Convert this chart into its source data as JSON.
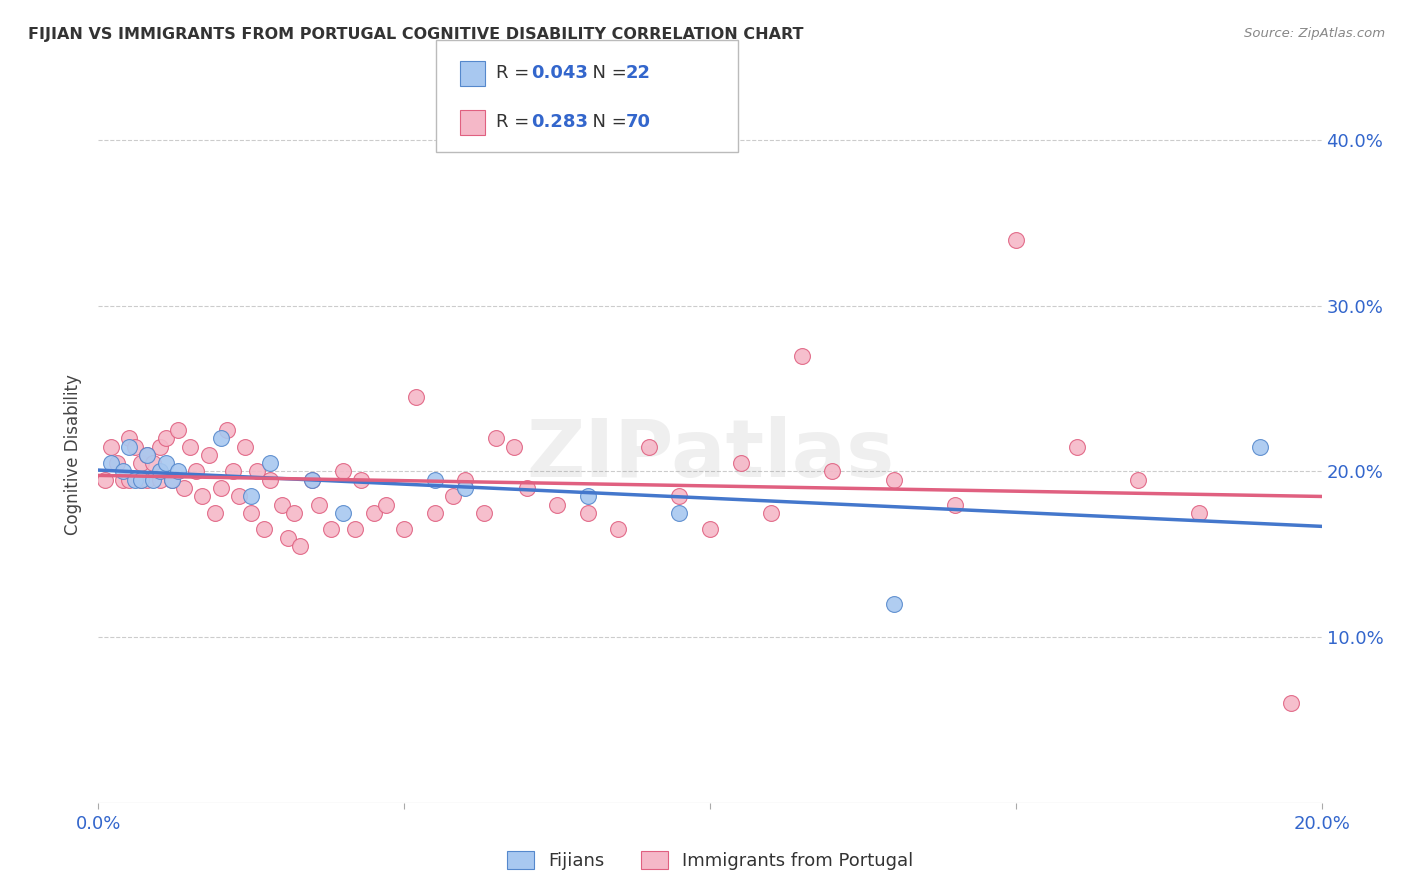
{
  "title": "FIJIAN VS IMMIGRANTS FROM PORTUGAL COGNITIVE DISABILITY CORRELATION CHART",
  "source": "Source: ZipAtlas.com",
  "ylabel": "Cognitive Disability",
  "xmin": 0.0,
  "xmax": 0.2,
  "ymin": 0.0,
  "ymax": 0.42,
  "yticks": [
    0.1,
    0.2,
    0.3,
    0.4
  ],
  "xticks": [
    0.0,
    0.05,
    0.1,
    0.15,
    0.2
  ],
  "xtick_labels": [
    "0.0%",
    "",
    "",
    "",
    "20.0%"
  ],
  "ytick_labels": [
    "10.0%",
    "20.0%",
    "30.0%",
    "40.0%"
  ],
  "legend_labels": [
    "Fijians",
    "Immigrants from Portugal"
  ],
  "fijian_R": "0.043",
  "fijian_N": "22",
  "portugal_R": "0.283",
  "portugal_N": "70",
  "fijian_color": "#a8c8f0",
  "fijian_edge_color": "#5588cc",
  "fijian_line_color": "#4477cc",
  "portugal_color": "#f5b8c8",
  "portugal_edge_color": "#e06080",
  "portugal_line_color": "#e06080",
  "background_color": "#ffffff",
  "grid_color": "#cccccc",
  "watermark_text": "ZIPatlas",
  "watermark_alpha": 0.12,
  "fijian_x": [
    0.002,
    0.004,
    0.005,
    0.006,
    0.007,
    0.008,
    0.009,
    0.01,
    0.011,
    0.012,
    0.013,
    0.02,
    0.025,
    0.028,
    0.035,
    0.04,
    0.055,
    0.06,
    0.08,
    0.095,
    0.13,
    0.19
  ],
  "fijian_y": [
    0.205,
    0.2,
    0.215,
    0.195,
    0.195,
    0.21,
    0.195,
    0.2,
    0.205,
    0.195,
    0.2,
    0.22,
    0.185,
    0.205,
    0.195,
    0.175,
    0.195,
    0.19,
    0.185,
    0.175,
    0.12,
    0.215
  ],
  "portugal_x": [
    0.001,
    0.002,
    0.003,
    0.004,
    0.005,
    0.005,
    0.006,
    0.007,
    0.007,
    0.008,
    0.008,
    0.009,
    0.01,
    0.01,
    0.011,
    0.012,
    0.013,
    0.014,
    0.015,
    0.016,
    0.017,
    0.018,
    0.019,
    0.02,
    0.021,
    0.022,
    0.023,
    0.024,
    0.025,
    0.026,
    0.027,
    0.028,
    0.03,
    0.031,
    0.032,
    0.033,
    0.035,
    0.036,
    0.038,
    0.04,
    0.042,
    0.043,
    0.045,
    0.047,
    0.05,
    0.052,
    0.055,
    0.058,
    0.06,
    0.063,
    0.065,
    0.068,
    0.07,
    0.075,
    0.08,
    0.085,
    0.09,
    0.095,
    0.1,
    0.105,
    0.11,
    0.115,
    0.12,
    0.13,
    0.14,
    0.15,
    0.16,
    0.17,
    0.18,
    0.195
  ],
  "portugal_y": [
    0.195,
    0.215,
    0.205,
    0.195,
    0.22,
    0.195,
    0.215,
    0.205,
    0.195,
    0.21,
    0.195,
    0.205,
    0.215,
    0.195,
    0.22,
    0.195,
    0.225,
    0.19,
    0.215,
    0.2,
    0.185,
    0.21,
    0.175,
    0.19,
    0.225,
    0.2,
    0.185,
    0.215,
    0.175,
    0.2,
    0.165,
    0.195,
    0.18,
    0.16,
    0.175,
    0.155,
    0.195,
    0.18,
    0.165,
    0.2,
    0.165,
    0.195,
    0.175,
    0.18,
    0.165,
    0.245,
    0.175,
    0.185,
    0.195,
    0.175,
    0.22,
    0.215,
    0.19,
    0.18,
    0.175,
    0.165,
    0.215,
    0.185,
    0.165,
    0.205,
    0.175,
    0.27,
    0.2,
    0.195,
    0.18,
    0.34,
    0.215,
    0.195,
    0.175,
    0.06
  ]
}
